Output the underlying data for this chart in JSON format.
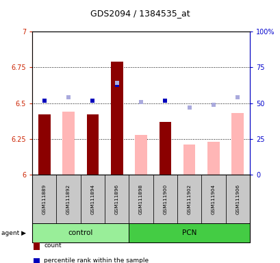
{
  "title": "GDS2094 / 1384535_at",
  "samples": [
    "GSM111889",
    "GSM111892",
    "GSM111894",
    "GSM111896",
    "GSM111898",
    "GSM111900",
    "GSM111902",
    "GSM111904",
    "GSM111906"
  ],
  "groups": [
    "control",
    "control",
    "control",
    "control",
    "PCN",
    "PCN",
    "PCN",
    "PCN",
    "PCN"
  ],
  "ylim_left": [
    6.0,
    7.0
  ],
  "ylim_right": [
    0,
    100
  ],
  "yticks_left": [
    6.0,
    6.25,
    6.5,
    6.75,
    7.0
  ],
  "yticks_right": [
    0,
    25,
    50,
    75,
    100
  ],
  "ytick_labels_left": [
    "6",
    "6.25",
    "6.5",
    "6.75",
    "7"
  ],
  "ytick_labels_right": [
    "0",
    "25",
    "50",
    "75",
    "100%"
  ],
  "red_bars": [
    6.42,
    null,
    6.42,
    6.79,
    null,
    6.37,
    null,
    null,
    null
  ],
  "pink_bars": [
    null,
    6.44,
    null,
    null,
    6.28,
    null,
    6.21,
    6.23,
    6.43
  ],
  "blue_squares": [
    6.52,
    null,
    6.52,
    6.63,
    null,
    6.52,
    null,
    null,
    null
  ],
  "lavender_squares": [
    null,
    6.54,
    null,
    6.64,
    6.51,
    null,
    6.47,
    6.49,
    6.54
  ],
  "red_color": "#8B0000",
  "pink_color": "#FFB6B6",
  "blue_color": "#0000BB",
  "lavender_color": "#AAAADD",
  "control_color": "#99EE99",
  "pcn_color": "#44CC44",
  "bg_color": "#C8C8C8",
  "left_axis_color": "#CC2200",
  "right_axis_color": "#0000CC",
  "bar_width": 0.5
}
